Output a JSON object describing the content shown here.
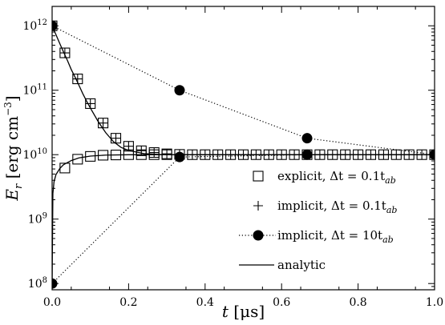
{
  "chart_data": {
    "type": "line",
    "title": "",
    "xlabel": "t [μs]",
    "ylabel": "E_r [erg cm^-3]",
    "xlim": [
      0,
      1.0
    ],
    "ylim": [
      80000000.0,
      2000000000000.0
    ],
    "yscale": "log",
    "grid": false,
    "legend_position": "bottom-right",
    "x_ticks": [
      {
        "value": 0.0,
        "label": "0.0"
      },
      {
        "value": 0.2,
        "label": "0.2"
      },
      {
        "value": 0.4,
        "label": "0.4"
      },
      {
        "value": 0.6,
        "label": "0.6"
      },
      {
        "value": 0.8,
        "label": "0.8"
      },
      {
        "value": 1.0,
        "label": "1.0"
      }
    ],
    "y_ticks": [
      {
        "value": 100000000.0,
        "mant": "10",
        "exp": "8"
      },
      {
        "value": 1000000000.0,
        "mant": "10",
        "exp": "9"
      },
      {
        "value": 10000000000.0,
        "mant": "10",
        "exp": "10"
      },
      {
        "value": 100000000000.0,
        "mant": "10",
        "exp": "11"
      },
      {
        "value": 1000000000000.0,
        "mant": "10",
        "exp": "12"
      }
    ],
    "series": [
      {
        "name": "explicit, Δt = 0.1t_ab",
        "marker": "square",
        "line": "none",
        "x": [
          0.0,
          0.0333,
          0.0667,
          0.1,
          0.1333,
          0.1667,
          0.2,
          0.2333,
          0.2667,
          0.3,
          0.3333,
          0.3667,
          0.4,
          0.4333,
          0.4667,
          0.5,
          0.5333,
          0.5667,
          0.6,
          0.6333,
          0.6667,
          0.7,
          0.7333,
          0.7667,
          0.8,
          0.8333,
          0.8667,
          0.9,
          0.9333,
          0.9667,
          1.0
        ],
        "y": [
          1000000000000.0,
          380000000000.0,
          150000000000.0,
          62000000000.0,
          31000000000.0,
          18000000000.0,
          13500000000.0,
          11500000000.0,
          10800000000.0,
          10300000000.0,
          10100000000.0,
          10000000000.0,
          10000000000.0,
          10000000000.0,
          10000000000.0,
          10000000000.0,
          10000000000.0,
          10000000000.0,
          10000000000.0,
          10000000000.0,
          10000000000.0,
          10000000000.0,
          10000000000.0,
          10000000000.0,
          10000000000.0,
          10000000000.0,
          10000000000.0,
          10000000000.0,
          10000000000.0,
          10000000000.0,
          10000000000.0
        ]
      },
      {
        "name": "explicit, Δt = 0.1t_ab (rising)",
        "marker": "square",
        "line": "none",
        "x": [
          0.0333,
          0.0667,
          0.1,
          0.1333,
          0.1667,
          0.2,
          0.2333,
          0.2667,
          0.3
        ],
        "y": [
          6200000000.0,
          8500000000.0,
          9400000000.0,
          9800000000.0,
          9900000000.0,
          10000000000.0,
          10000000000.0,
          10000000000.0,
          10000000000.0
        ]
      },
      {
        "name": "implicit, Δt = 0.1t_ab",
        "marker": "plus",
        "line": "none",
        "x": [
          0.0,
          0.0333,
          0.0667,
          0.1,
          0.1333,
          0.1667,
          0.2,
          0.2333,
          0.2667,
          0.3,
          0.3333,
          0.3667,
          0.4,
          0.4333,
          0.4667,
          0.5,
          0.5333,
          0.5667,
          0.6,
          0.6333,
          0.6667,
          0.7,
          0.7333,
          0.7667,
          0.8,
          0.8333,
          0.8667,
          0.9,
          0.9333,
          0.9667,
          1.0
        ],
        "y": [
          1000000000000.0,
          380000000000.0,
          150000000000.0,
          62000000000.0,
          31000000000.0,
          18000000000.0,
          13500000000.0,
          11500000000.0,
          10800000000.0,
          10300000000.0,
          10100000000.0,
          10000000000.0,
          10000000000.0,
          10000000000.0,
          10000000000.0,
          10000000000.0,
          10000000000.0,
          10000000000.0,
          10000000000.0,
          10000000000.0,
          10000000000.0,
          10000000000.0,
          10000000000.0,
          10000000000.0,
          10000000000.0,
          10000000000.0,
          10000000000.0,
          10000000000.0,
          10000000000.0,
          10000000000.0,
          10000000000.0
        ]
      },
      {
        "name": "implicit, Δt = 10t_ab",
        "marker": "circle",
        "line": "dotted",
        "x": [
          0.0,
          0.3333,
          0.6667,
          1.0
        ],
        "y": [
          1000000000000.0,
          100000000000.0,
          18000000000.0,
          10000000000.0
        ]
      },
      {
        "name": "implicit, Δt = 10t_ab (rising)",
        "marker": "circle",
        "line": "dotted",
        "x": [
          0.0,
          0.3333,
          0.6667,
          1.0
        ],
        "y": [
          100000000.0,
          9200000000.0,
          10000000000.0,
          10000000000.0
        ]
      },
      {
        "name": "analytic",
        "marker": "none",
        "line": "solid",
        "x": [
          0.0,
          0.01,
          0.02,
          0.03,
          0.04,
          0.05,
          0.06,
          0.07,
          0.08,
          0.09,
          0.1,
          0.12,
          0.14,
          0.16,
          0.18,
          0.2,
          0.24,
          0.28,
          0.32,
          0.4,
          0.5,
          0.6,
          0.7,
          0.8,
          0.9,
          1.0
        ],
        "y": [
          1000000000000.0,
          730000000000.0,
          530000000000.0,
          390000000000.0,
          290000000000.0,
          210000000000.0,
          160000000000.0,
          120000000000.0,
          89000000000.0,
          68000000000.0,
          53000000000.0,
          33000000000.0,
          22000000000.0,
          16000000000.0,
          13000000000.0,
          11600000000.0,
          10400000000.0,
          10100000000.0,
          10000000000.0,
          10000000000.0,
          10000000000.0,
          10000000000.0,
          10000000000.0,
          10000000000.0,
          10000000000.0,
          10000000000.0
        ]
      },
      {
        "name": "analytic (rising)",
        "marker": "none",
        "line": "solid",
        "x": [
          0.0,
          0.002,
          0.005,
          0.01,
          0.02,
          0.03,
          0.05,
          0.07,
          0.1,
          0.14,
          0.2,
          0.3,
          0.5,
          1.0
        ],
        "y": [
          100000000.0,
          2500000000.0,
          3800000000.0,
          4900000000.0,
          6100000000.0,
          7000000000.0,
          8100000000.0,
          8900000000.0,
          9500000000.0,
          9850000000.0,
          9970000000.0,
          10000000000.0,
          10000000000.0,
          10000000000.0
        ]
      }
    ],
    "legend": [
      {
        "marker": "square",
        "label": "explicit, Δt = 0.1t_ab"
      },
      {
        "marker": "plus",
        "label": "implicit, Δt = 0.1t_ab"
      },
      {
        "marker": "circle",
        "label": "implicit, Δt = 10t_ab"
      },
      {
        "marker": "line",
        "label": "analytic"
      }
    ],
    "colors": {
      "ink": "#000000",
      "background": "#ffffff"
    }
  }
}
